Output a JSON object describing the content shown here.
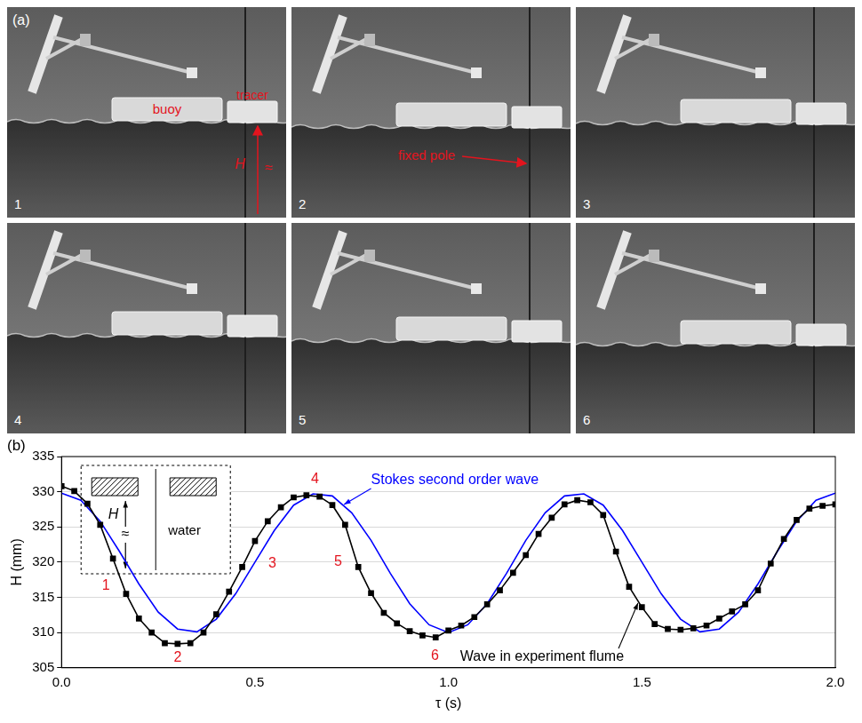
{
  "panel_a": {
    "letter": "(a)",
    "frames": [
      {
        "number": "1",
        "buoy": "buoy",
        "tracer": "tracer",
        "height": "H",
        "approx": "≈"
      },
      {
        "number": "2",
        "pole": "fixed pole"
      },
      {
        "number": "3"
      },
      {
        "number": "4"
      },
      {
        "number": "5"
      },
      {
        "number": "6"
      }
    ]
  },
  "chart_data": {
    "type": "line",
    "letter": "(b)",
    "x_label": "τ (s)",
    "y_label": "H (mm)",
    "xlim": [
      0,
      2
    ],
    "xticks": [
      {
        "value": 0,
        "label": "0.0"
      },
      0.5,
      {
        "value": 1,
        "label": "1.0"
      },
      1.5,
      {
        "value": 2,
        "label": "2.0"
      }
    ],
    "ylim": [
      305,
      335
    ],
    "yticks": [
      305,
      310,
      315,
      320,
      325,
      330,
      335
    ],
    "grid": "y",
    "series": [
      {
        "name": "Wave in experiment flume",
        "color": "#000000",
        "marker": "square",
        "line_style": "solid",
        "x": [
          0,
          0.033,
          0.067,
          0.1,
          0.133,
          0.167,
          0.2,
          0.233,
          0.267,
          0.3,
          0.333,
          0.367,
          0.4,
          0.433,
          0.467,
          0.5,
          0.533,
          0.567,
          0.6,
          0.633,
          0.667,
          0.7,
          0.733,
          0.767,
          0.8,
          0.833,
          0.867,
          0.9,
          0.933,
          0.967,
          1,
          1.033,
          1.067,
          1.1,
          1.133,
          1.167,
          1.2,
          1.233,
          1.267,
          1.3,
          1.333,
          1.367,
          1.4,
          1.433,
          1.467,
          1.5,
          1.533,
          1.567,
          1.6,
          1.633,
          1.667,
          1.7,
          1.733,
          1.767,
          1.8,
          1.833,
          1.867,
          1.9,
          1.933,
          1.967,
          2
        ],
        "values": [
          330.8,
          330.1,
          328.3,
          325.3,
          320.5,
          315.5,
          312.0,
          310.0,
          308.5,
          308.4,
          308.5,
          310.0,
          312.6,
          315.8,
          319.3,
          323.0,
          325.8,
          327.8,
          329.2,
          329.5,
          329.3,
          328.1,
          325.3,
          319.3,
          315.6,
          312.8,
          311.3,
          310.2,
          309.6,
          309.3,
          310.3,
          311.0,
          312.2,
          314.0,
          316.0,
          318.5,
          321.0,
          324.0,
          326.3,
          328.2,
          328.8,
          328.5,
          326.7,
          321.5,
          316.5,
          313.6,
          311.2,
          310.5,
          310.4,
          310.6,
          311.0,
          312.0,
          313.0,
          314.0,
          316.0,
          319.8,
          323.3,
          326.0,
          327.6,
          328.0,
          328.2
        ],
        "label_at": {
          "x": 1.03,
          "y": 306.6
        },
        "arrow_to": {
          "x": 1.49,
          "y": 314.2
        }
      },
      {
        "name": "Stokes second order wave",
        "color": "#0000ff",
        "marker": "none",
        "line_style": "solid",
        "x": [
          0,
          0.05,
          0.1,
          0.15,
          0.2,
          0.25,
          0.3,
          0.35,
          0.4,
          0.45,
          0.5,
          0.55,
          0.6,
          0.65,
          0.7,
          0.75,
          0.8,
          0.85,
          0.9,
          0.95,
          1,
          1.05,
          1.1,
          1.15,
          1.2,
          1.25,
          1.3,
          1.35,
          1.4,
          1.45,
          1.5,
          1.55,
          1.6,
          1.65,
          1.7,
          1.75,
          1.8,
          1.85,
          1.9,
          1.95,
          2
        ],
        "values": [
          329.8,
          328.8,
          325.8,
          321.5,
          316.9,
          312.9,
          310.5,
          310.1,
          311.9,
          315.5,
          320.0,
          324.5,
          328.1,
          329.7,
          329.4,
          327.0,
          323.1,
          318.4,
          314.1,
          311.1,
          310.0,
          311.1,
          314.1,
          318.4,
          323.1,
          327.0,
          329.4,
          329.7,
          328.1,
          324.5,
          320.0,
          315.5,
          311.9,
          310.1,
          310.5,
          312.9,
          316.9,
          321.5,
          325.8,
          328.8,
          329.8
        ],
        "label_at": {
          "x": 0.8,
          "y": 331.6
        },
        "arrow_to": {
          "x": 0.73,
          "y": 328.2
        }
      }
    ],
    "point_labels": [
      {
        "text": "1",
        "x": 0.115,
        "y": 316.6
      },
      {
        "text": "2",
        "x": 0.3,
        "y": 306.4
      },
      {
        "text": "3",
        "x": 0.545,
        "y": 319.8
      },
      {
        "text": "4",
        "x": 0.655,
        "y": 331.8
      },
      {
        "text": "5",
        "x": 0.715,
        "y": 320.0
      },
      {
        "text": "6",
        "x": 0.965,
        "y": 306.7
      }
    ],
    "inset": {
      "height_label": "H",
      "approx": "≈",
      "medium": "water"
    }
  }
}
